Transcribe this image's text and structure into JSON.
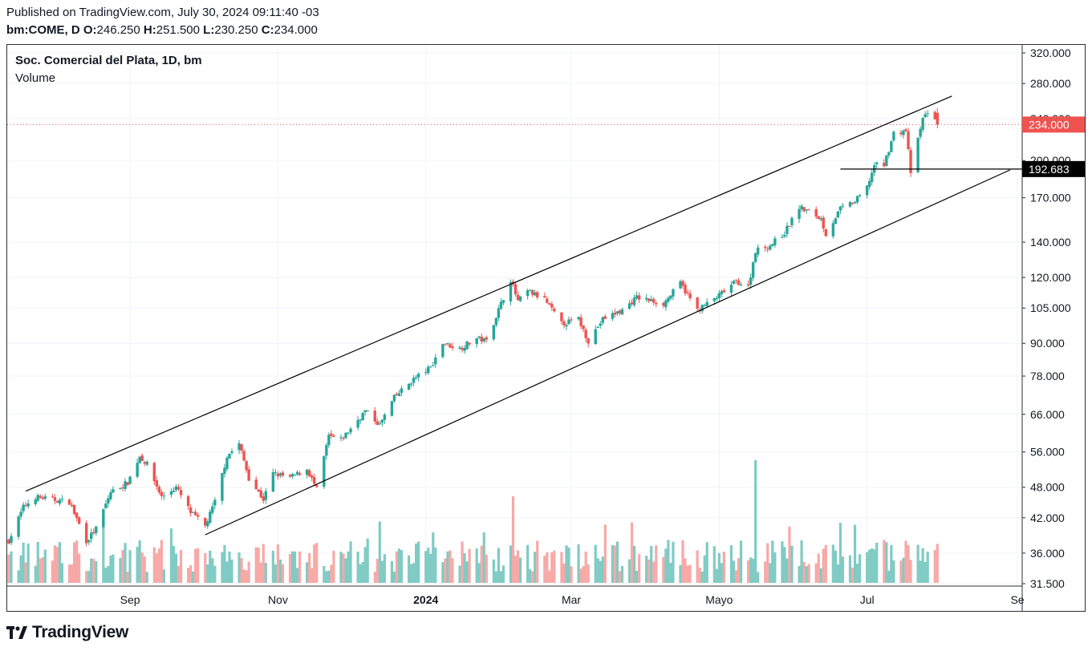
{
  "header": {
    "published": "Published on TradingView.com, July 30, 2024 09:11:40 -03",
    "symbol": "bm:COME, D",
    "o_label": "O:",
    "o_value": "246.250",
    "h_label": "H:",
    "h_value": "251.500",
    "l_label": "L:",
    "l_value": "230.250",
    "c_label": "C:",
    "c_value": "234.000"
  },
  "legend": {
    "title": "Soc. Comercial del Plata, 1D, bm",
    "volume": "Volume"
  },
  "brand": {
    "name": "TradingView",
    "icon": "tradingview-logo-icon"
  },
  "colors": {
    "up": "#26a69a",
    "down": "#ef5350",
    "up_vol": "#80cbc4",
    "down_vol": "#f7a9a7",
    "line": "#000000",
    "price_line": "#ef5350"
  },
  "chart_data": {
    "type": "candlestick",
    "y_scale": "log",
    "y_ticks": [
      "320.000",
      "280.000",
      "240.000",
      "200.000",
      "170.000",
      "140.000",
      "120.000",
      "105.000",
      "90.000",
      "78.000",
      "66.000",
      "56.000",
      "48.000",
      "42.000",
      "36.000",
      "31.500"
    ],
    "x_ticks": [
      {
        "label": "Sep",
        "date": "2023-09-01"
      },
      {
        "label": "Nov",
        "date": "2023-11-01"
      },
      {
        "label": "2024",
        "date": "2024-01-01",
        "bold": true
      },
      {
        "label": "Mar",
        "date": "2024-03-01"
      },
      {
        "label": "Mayo",
        "date": "2024-05-01"
      },
      {
        "label": "Jul",
        "date": "2024-07-01"
      },
      {
        "label": "Se",
        "date": "2024-09-01"
      }
    ],
    "x_range": [
      "2023-07-13",
      "2024-09-01"
    ],
    "last_price": {
      "value": 234.0,
      "label": "234.000"
    },
    "level": {
      "value": 192.683,
      "label": "192.683"
    },
    "ohlc": {
      "open": 246.25,
      "high": 251.5,
      "low": 230.25,
      "close": 234.0
    },
    "channel_upper": {
      "from": {
        "date": "2023-07-20",
        "price": 47.2
      },
      "to": {
        "date": "2024-08-05",
        "price": 265
      }
    },
    "channel_lower": {
      "from": {
        "date": "2023-10-02",
        "price": 39.0
      },
      "to": {
        "date": "2024-08-29",
        "price": 192
      }
    },
    "level_line": {
      "from_date": "2024-06-20"
    },
    "anchors": [
      [
        "2023-07-13",
        38
      ],
      [
        "2023-07-19",
        44
      ],
      [
        "2023-07-24",
        46
      ],
      [
        "2023-07-31",
        45.5
      ],
      [
        "2023-08-07",
        45
      ],
      [
        "2023-08-14",
        38
      ],
      [
        "2023-08-18",
        40
      ],
      [
        "2023-08-24",
        47
      ],
      [
        "2023-08-31",
        49
      ],
      [
        "2023-09-05",
        55
      ],
      [
        "2023-09-08",
        53
      ],
      [
        "2023-09-14",
        46
      ],
      [
        "2023-09-20",
        48
      ],
      [
        "2023-09-26",
        43
      ],
      [
        "2023-10-02",
        40.5
      ],
      [
        "2023-10-06",
        45
      ],
      [
        "2023-10-11",
        55
      ],
      [
        "2023-10-16",
        58
      ],
      [
        "2023-10-20",
        50
      ],
      [
        "2023-10-26",
        45.5
      ],
      [
        "2023-10-30",
        51
      ],
      [
        "2023-11-06",
        50
      ],
      [
        "2023-11-13",
        52
      ],
      [
        "2023-11-17",
        47.5
      ],
      [
        "2023-11-22",
        60
      ],
      [
        "2023-11-27",
        59
      ],
      [
        "2023-12-01",
        62
      ],
      [
        "2023-12-07",
        67
      ],
      [
        "2023-12-13",
        63
      ],
      [
        "2023-12-19",
        71
      ],
      [
        "2023-12-27",
        77
      ],
      [
        "2024-01-03",
        81
      ],
      [
        "2024-01-08",
        90
      ],
      [
        "2024-01-15",
        88
      ],
      [
        "2024-01-22",
        92
      ],
      [
        "2024-01-26",
        91
      ],
      [
        "2024-02-01",
        107
      ],
      [
        "2024-02-05",
        119
      ],
      [
        "2024-02-08",
        108
      ],
      [
        "2024-02-12",
        113
      ],
      [
        "2024-02-19",
        109
      ],
      [
        "2024-02-26",
        98
      ],
      [
        "2024-03-04",
        100
      ],
      [
        "2024-03-08",
        91
      ],
      [
        "2024-03-14",
        100
      ],
      [
        "2024-03-22",
        104
      ],
      [
        "2024-03-28",
        110
      ],
      [
        "2024-04-08",
        107
      ],
      [
        "2024-04-15",
        117
      ],
      [
        "2024-04-22",
        104
      ],
      [
        "2024-04-30",
        110
      ],
      [
        "2024-05-08",
        118
      ],
      [
        "2024-05-13",
        115
      ],
      [
        "2024-05-16",
        135
      ],
      [
        "2024-05-22",
        138
      ],
      [
        "2024-05-28",
        146
      ],
      [
        "2024-06-03",
        163
      ],
      [
        "2024-06-07",
        160
      ],
      [
        "2024-06-12",
        155
      ],
      [
        "2024-06-14",
        145
      ],
      [
        "2024-06-20",
        162
      ],
      [
        "2024-06-26",
        167
      ],
      [
        "2024-07-01",
        178
      ],
      [
        "2024-07-04",
        196
      ],
      [
        "2024-07-08",
        196
      ],
      [
        "2024-07-12",
        225
      ],
      [
        "2024-07-17",
        228
      ],
      [
        "2024-07-19",
        190
      ],
      [
        "2024-07-24",
        240
      ],
      [
        "2024-07-26",
        248
      ],
      [
        "2024-07-30",
        234
      ]
    ]
  }
}
